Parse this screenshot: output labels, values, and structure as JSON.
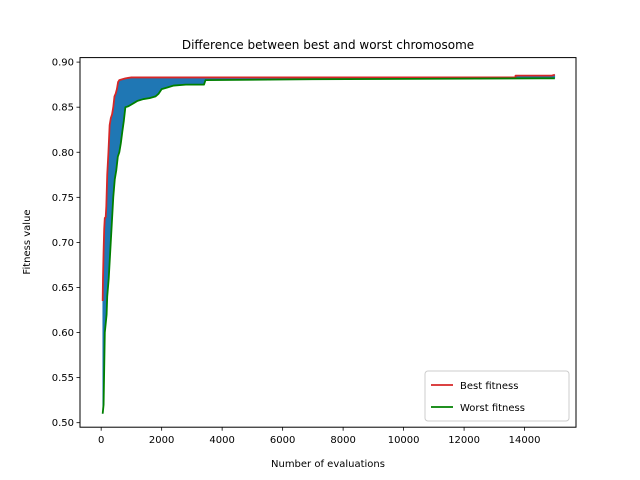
{
  "chart_data": {
    "type": "line",
    "title": "Difference between best and worst chromosome",
    "xlabel": "Number of evaluations",
    "ylabel": "Fitness value",
    "xlim": [
      -700,
      15700
    ],
    "ylim": [
      0.495,
      0.905
    ],
    "x_ticks": [
      0,
      2000,
      4000,
      6000,
      8000,
      10000,
      12000,
      14000
    ],
    "y_ticks": [
      0.5,
      0.55,
      0.6,
      0.65,
      0.7,
      0.75,
      0.8,
      0.85,
      0.9
    ],
    "x_tick_labels": [
      "0",
      "2000",
      "4000",
      "6000",
      "8000",
      "10000",
      "12000",
      "14000"
    ],
    "y_tick_labels": [
      "0.50",
      "0.55",
      "0.60",
      "0.65",
      "0.70",
      "0.75",
      "0.80",
      "0.85",
      "0.90"
    ],
    "grid": false,
    "legend_position": "lower-right",
    "fill_between": true,
    "fill_color": "#1f77b4",
    "series": [
      {
        "name": "Best fitness",
        "color": "#d62728",
        "points": [
          [
            50,
            0.635
          ],
          [
            60,
            0.66
          ],
          [
            80,
            0.69
          ],
          [
            100,
            0.715
          ],
          [
            120,
            0.727
          ],
          [
            150,
            0.728
          ],
          [
            170,
            0.74
          ],
          [
            200,
            0.775
          ],
          [
            240,
            0.8
          ],
          [
            280,
            0.83
          ],
          [
            320,
            0.838
          ],
          [
            360,
            0.842
          ],
          [
            400,
            0.85
          ],
          [
            440,
            0.862
          ],
          [
            480,
            0.865
          ],
          [
            520,
            0.87
          ],
          [
            560,
            0.878
          ],
          [
            600,
            0.88
          ],
          [
            700,
            0.881
          ],
          [
            800,
            0.882
          ],
          [
            1000,
            0.883
          ],
          [
            2000,
            0.883
          ],
          [
            3500,
            0.883
          ],
          [
            7000,
            0.883
          ],
          [
            13700,
            0.883
          ],
          [
            13700,
            0.885
          ],
          [
            14900,
            0.885
          ],
          [
            15000,
            0.886
          ]
        ]
      },
      {
        "name": "Worst fitness",
        "color": "#008000",
        "points": [
          [
            50,
            0.51
          ],
          [
            80,
            0.52
          ],
          [
            100,
            0.56
          ],
          [
            120,
            0.6
          ],
          [
            150,
            0.61
          ],
          [
            180,
            0.62
          ],
          [
            200,
            0.64
          ],
          [
            250,
            0.66
          ],
          [
            300,
            0.69
          ],
          [
            350,
            0.72
          ],
          [
            400,
            0.75
          ],
          [
            450,
            0.77
          ],
          [
            500,
            0.78
          ],
          [
            550,
            0.795
          ],
          [
            600,
            0.8
          ],
          [
            650,
            0.81
          ],
          [
            700,
            0.823
          ],
          [
            750,
            0.835
          ],
          [
            800,
            0.85
          ],
          [
            900,
            0.851
          ],
          [
            1000,
            0.853
          ],
          [
            1100,
            0.855
          ],
          [
            1200,
            0.857
          ],
          [
            1400,
            0.859
          ],
          [
            1600,
            0.86
          ],
          [
            1800,
            0.862
          ],
          [
            1900,
            0.865
          ],
          [
            2000,
            0.87
          ],
          [
            2200,
            0.872
          ],
          [
            2400,
            0.874
          ],
          [
            2800,
            0.875
          ],
          [
            3400,
            0.875
          ],
          [
            3450,
            0.88
          ],
          [
            7000,
            0.881
          ],
          [
            14500,
            0.882
          ],
          [
            15000,
            0.882
          ]
        ]
      }
    ]
  }
}
